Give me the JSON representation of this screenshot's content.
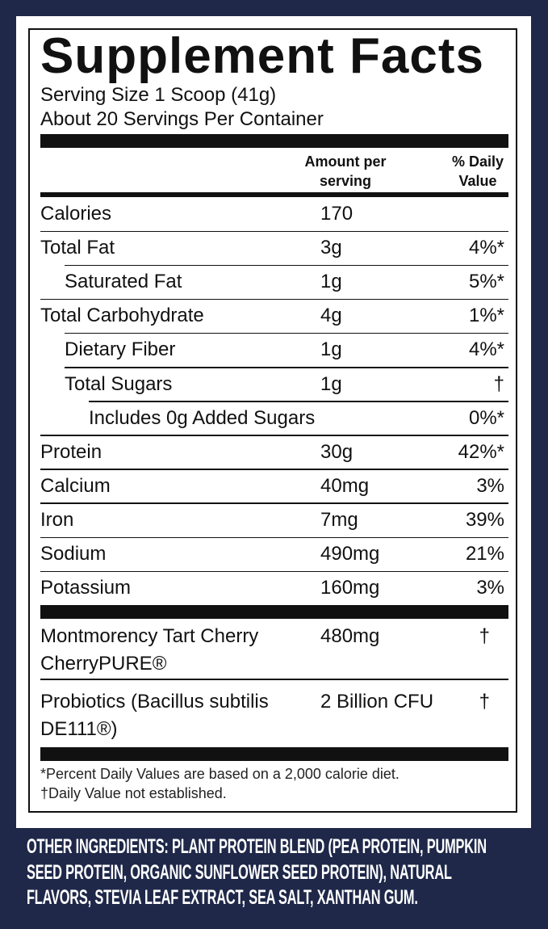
{
  "header": {
    "title": "Supplement Facts",
    "serving_size": "Serving Size 1 Scoop (41g)",
    "servings_per_container": "About 20 Servings Per Container"
  },
  "table": {
    "columns": [
      "Amount per serving",
      "% Daily Value"
    ],
    "rows": [
      [
        "Calories",
        "170"
      ],
      [
        "Total Fat",
        "3g",
        "4%*"
      ],
      [
        "Saturated Fat",
        "1g",
        "5%*"
      ],
      [
        "Total Carbohydrate",
        "4g",
        "1%*"
      ],
      [
        "Dietary Fiber",
        "1g",
        "4%*"
      ],
      [
        "Total Sugars",
        "1g",
        "†"
      ],
      [
        "Includes 0g Added Sugars",
        "0%*"
      ],
      [
        "Protein",
        "30g",
        "42%*"
      ],
      [
        "Calcium",
        "40mg",
        "3%"
      ],
      [
        "Iron",
        "7mg",
        "39%"
      ],
      [
        "Sodium",
        "490mg",
        "21%"
      ],
      [
        "Potassium",
        "160mg",
        "3%"
      ]
    ],
    "additional": [
      [
        "Montmorency Tart Cherry CherryPURE®",
        "480mg",
        "†"
      ],
      [
        "Probiotics (Bacillus subtilis DE111®)",
        "2 Billion CFU",
        "†"
      ]
    ]
  },
  "footnotes": [
    "*Percent Daily Values are based on a 2,000 calorie diet.",
    "†Daily Value not established."
  ],
  "other_ingredients": "OTHER INGREDIENTS: PLANT PROTEIN BLEND (PEA PROTEIN, PUMPKIN SEED PROTEIN, ORGANIC SUNFLOWER SEED PROTEIN), NATURAL FLAVORS, STEVIA LEAF EXTRACT, SEA SALT, XANTHAN GUM."
}
